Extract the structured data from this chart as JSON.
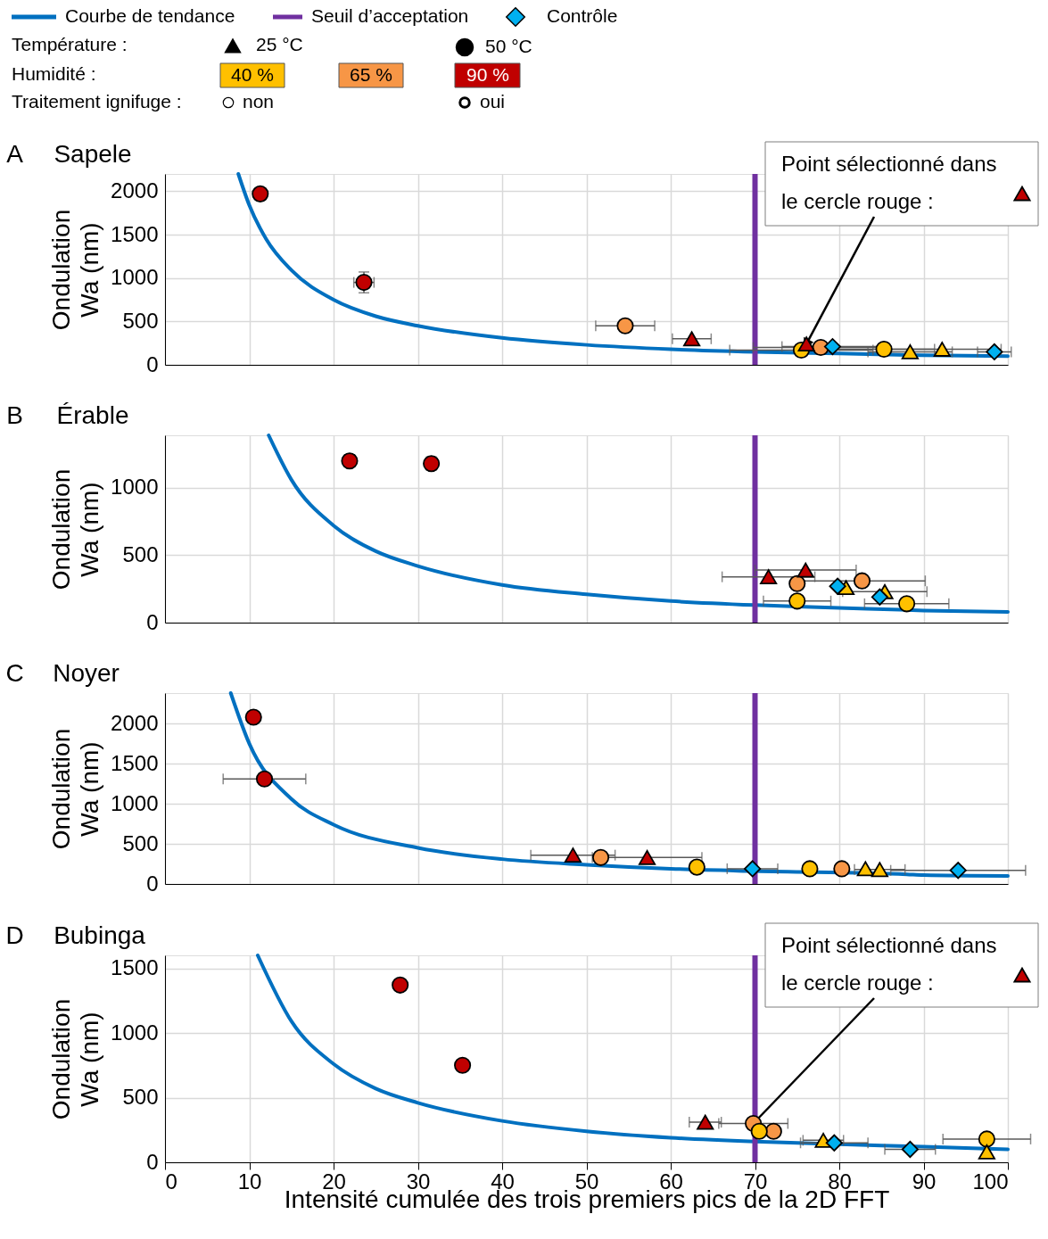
{
  "chart_data": [
    {
      "type": "other",
      "annotations": [
        "Courbe de tendance",
        "Seuil d’acceptation",
        "Contrôle",
        "Température :",
        "25 °C",
        "50 °C",
        "Humidité :",
        "40 %",
        "65 %",
        "90 %",
        "Traitement ignifuge :",
        "non",
        "oui"
      ]
    },
    {
      "type": "scatter",
      "title": "A",
      "subtitle": "Sapele",
      "ylabel": "Ondulation Wa (nm)",
      "xlim": [
        0,
        100
      ],
      "xticks": [
        0,
        10,
        20,
        30,
        40,
        50,
        60,
        70,
        80,
        90,
        100
      ],
      "ylim": [
        0,
        2200
      ],
      "yticks": [
        0,
        500,
        1000,
        1500,
        2000
      ],
      "grid": true,
      "tick_labels": "y",
      "ref_lines": [
        {
          "axis": "x",
          "value": 70,
          "color": "#7030a0"
        }
      ],
      "annotations": [
        {
          "text": "Point sélectionné dans le cercle rouge :",
          "x": 76.1,
          "y": 240
        }
      ],
      "series": [
        {
          "type": "line",
          "color": "#0070c0",
          "x": [
            8.7,
            10,
            12,
            15,
            20,
            25,
            30,
            40,
            50,
            60,
            70,
            80,
            90,
            100
          ],
          "values": [
            2200,
            1840,
            1450,
            1090,
            750,
            560,
            450,
            310,
            230,
            180,
            150,
            130,
            110,
            100
          ]
        },
        {
          "type": "scatter",
          "color": "#c00000",
          "marker": "circle",
          "x": [
            11.3,
            23.6
          ],
          "values": [
            1970,
            950
          ],
          "xerrors": [
            null,
            1.2
          ],
          "errors": [
            null,
            120
          ]
        },
        {
          "type": "scatter",
          "color": "#c00000",
          "marker": "triangle",
          "x": [
            62.5,
            76.1
          ],
          "values": [
            300,
            240
          ],
          "xerrors": [
            2.3,
            null
          ]
        },
        {
          "type": "scatter",
          "color": "#f79646",
          "marker": "circle",
          "x": [
            54.6,
            77.8
          ],
          "values": [
            450,
            200
          ],
          "xerrors": [
            3.5,
            8
          ]
        },
        {
          "type": "scatter",
          "color": "#ffc000",
          "marker": "circle",
          "x": [
            75.5,
            85.3
          ],
          "values": [
            170,
            180
          ],
          "xerrors": [
            8.5,
            6
          ]
        },
        {
          "type": "scatter",
          "color": "#ffc000",
          "marker": "triangle",
          "x": [
            88.4,
            92.2
          ],
          "values": [
            150,
            180
          ],
          "xerrors": [
            5,
            7
          ]
        },
        {
          "type": "scatter",
          "color": "#00b0f0",
          "marker": "diamond",
          "x": [
            79.2,
            98.4
          ],
          "values": [
            210,
            150
          ],
          "xerrors": [
            6,
            2
          ]
        }
      ]
    },
    {
      "type": "scatter",
      "title": "B",
      "subtitle": "Érable",
      "ylabel": "Ondulation Wa (nm)",
      "xlim": [
        0,
        100
      ],
      "xticks": [
        0,
        10,
        20,
        30,
        40,
        50,
        60,
        70,
        80,
        90,
        100
      ],
      "ylim": [
        0,
        1390
      ],
      "yticks": [
        0,
        500,
        1000
      ],
      "grid": true,
      "tick_labels": "y",
      "ref_lines": [
        {
          "axis": "x",
          "value": 70,
          "color": "#7030a0"
        }
      ],
      "series": [
        {
          "type": "line",
          "color": "#0070c0",
          "x": [
            12.3,
            15,
            20,
            25,
            30,
            40,
            50,
            60,
            70,
            80,
            90,
            100
          ],
          "values": [
            1390,
            1060,
            720,
            530,
            420,
            280,
            210,
            160,
            130,
            110,
            90,
            80
          ]
        },
        {
          "type": "scatter",
          "color": "#c00000",
          "marker": "circle",
          "x": [
            21.9,
            31.6
          ],
          "values": [
            1200,
            1180
          ],
          "errors": [
            null,
            50
          ]
        },
        {
          "type": "scatter",
          "color": "#c00000",
          "marker": "triangle",
          "x": [
            71.6,
            76.0
          ],
          "values": [
            340,
            390
          ],
          "xerrors": [
            5.5,
            6
          ]
        },
        {
          "type": "scatter",
          "color": "#f79646",
          "marker": "circle",
          "x": [
            75.0,
            82.7
          ],
          "values": [
            290,
            310
          ],
          "xerrors": [
            null,
            7.5
          ]
        },
        {
          "type": "scatter",
          "color": "#ffc000",
          "marker": "circle",
          "x": [
            75.0,
            88.0
          ],
          "values": [
            160,
            140
          ],
          "xerrors": [
            4,
            5
          ]
        },
        {
          "type": "scatter",
          "color": "#ffc000",
          "marker": "triangle",
          "x": [
            80.8,
            85.4
          ],
          "values": [
            260,
            230
          ],
          "xerrors": [
            null,
            5
          ]
        },
        {
          "type": "scatter",
          "color": "#00b0f0",
          "marker": "diamond",
          "x": [
            79.8,
            84.8
          ],
          "values": [
            270,
            190
          ]
        }
      ]
    },
    {
      "type": "scatter",
      "title": "C",
      "subtitle": "Noyer",
      "ylabel": "Ondulation Wa (nm)",
      "xlim": [
        0,
        100
      ],
      "xticks": [
        0,
        10,
        20,
        30,
        40,
        50,
        60,
        70,
        80,
        90,
        100
      ],
      "ylim": [
        0,
        2380
      ],
      "yticks": [
        0,
        500,
        1000,
        1500,
        2000
      ],
      "grid": true,
      "tick_labels": "y",
      "ref_lines": [
        {
          "axis": "x",
          "value": 70,
          "color": "#7030a0"
        }
      ],
      "series": [
        {
          "type": "line",
          "color": "#0070c0",
          "x": [
            7.8,
            10,
            15,
            20,
            30,
            40,
            50,
            60,
            70,
            88,
            90,
            100
          ],
          "values": [
            2380,
            1750,
            1060,
            740,
            450,
            310,
            240,
            190,
            160,
            120,
            110,
            100
          ]
        },
        {
          "type": "scatter",
          "color": "#c00000",
          "marker": "circle",
          "x": [
            10.5,
            11.8
          ],
          "values": [
            2080,
            1310
          ],
          "xerrors": [
            null,
            4.9
          ]
        },
        {
          "type": "scatter",
          "color": "#c00000",
          "marker": "triangle",
          "x": [
            48.4,
            57.2
          ],
          "values": [
            360,
            330
          ],
          "xerrors": [
            5,
            6.5
          ]
        },
        {
          "type": "scatter",
          "color": "#f79646",
          "marker": "circle",
          "x": [
            51.7,
            80.3
          ],
          "values": [
            330,
            190
          ]
        },
        {
          "type": "scatter",
          "color": "#ffc000",
          "marker": "circle",
          "x": [
            63.1,
            76.5
          ],
          "values": [
            210,
            190
          ]
        },
        {
          "type": "scatter",
          "color": "#ffc000",
          "marker": "triangle",
          "x": [
            83.1,
            84.8
          ],
          "values": [
            190,
            180
          ],
          "xerrors": [
            null,
            3
          ]
        },
        {
          "type": "scatter",
          "color": "#00b0f0",
          "marker": "diamond",
          "x": [
            69.7,
            94.1
          ],
          "values": [
            190,
            170
          ],
          "xerrors": [
            3,
            8
          ]
        }
      ]
    },
    {
      "type": "scatter",
      "title": "D",
      "subtitle": "Bubinga",
      "xlabel": "Intensité cumulée des trois premiers pics de la 2D FFT",
      "ylabel": "Ondulation Wa (nm)",
      "xlim": [
        0,
        100
      ],
      "xticks": [
        0,
        10,
        20,
        30,
        40,
        50,
        60,
        70,
        80,
        90,
        100
      ],
      "ylim": [
        0,
        1600
      ],
      "yticks": [
        0,
        500,
        1000,
        1500
      ],
      "grid": true,
      "ref_lines": [
        {
          "axis": "x",
          "value": 70,
          "color": "#7030a0"
        }
      ],
      "annotations": [
        {
          "text": "Point sélectionné dans le cercle rouge :",
          "x": 69.8,
          "y": 300
        }
      ],
      "series": [
        {
          "type": "line",
          "color": "#0070c0",
          "x": [
            11,
            15,
            20,
            25,
            30,
            40,
            50,
            60,
            70,
            80,
            90,
            100
          ],
          "values": [
            1600,
            1090,
            760,
            570,
            460,
            320,
            240,
            190,
            160,
            140,
            120,
            100
          ]
        },
        {
          "type": "scatter",
          "color": "#c00000",
          "marker": "circle",
          "x": [
            27.9,
            35.3
          ],
          "values": [
            1370,
            750
          ]
        },
        {
          "type": "scatter",
          "color": "#c00000",
          "marker": "triangle",
          "x": [
            64.1
          ],
          "values": [
            310
          ],
          "xerrors": [
            1.9
          ]
        },
        {
          "type": "scatter",
          "color": "#f79646",
          "marker": "circle",
          "x": [
            69.8,
            72.2
          ],
          "values": [
            300,
            240
          ],
          "xerrors": [
            4.1,
            null
          ]
        },
        {
          "type": "scatter",
          "color": "#ffc000",
          "marker": "circle",
          "x": [
            70.5,
            97.5
          ],
          "values": [
            240,
            180
          ],
          "xerrors": [
            null,
            5.2
          ]
        },
        {
          "type": "scatter",
          "color": "#ffc000",
          "marker": "triangle",
          "x": [
            78.1,
            97.5
          ],
          "values": [
            170,
            80
          ],
          "xerrors": [
            2.4,
            null
          ]
        },
        {
          "type": "scatter",
          "color": "#00b0f0",
          "marker": "diamond",
          "x": [
            79.4,
            88.4
          ],
          "values": [
            150,
            100
          ],
          "xerrors": [
            4,
            3
          ]
        }
      ]
    }
  ]
}
